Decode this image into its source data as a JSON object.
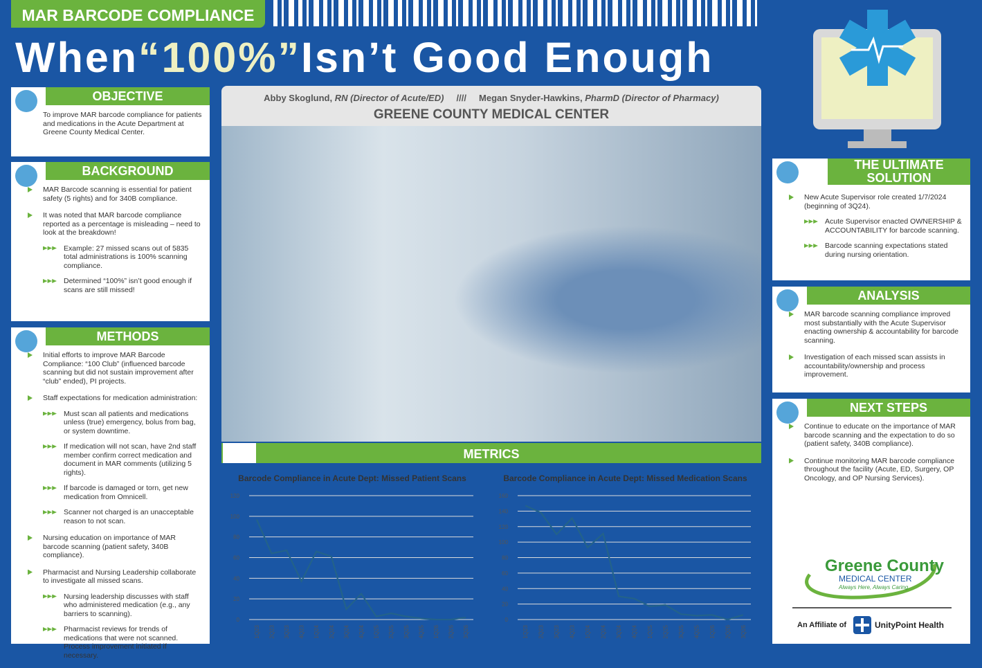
{
  "header": {
    "tag": "MAR BARCODE COMPLIANCE",
    "title_parts": [
      "When",
      "“100%”",
      "Isn’t Good Enough"
    ]
  },
  "center": {
    "authors": {
      "name1": "Abby Skoglund,",
      "role1": "RN (Director of Acute/ED)",
      "separator": "////",
      "name2": "Megan Snyder-Hawkins,",
      "role2": "PharmD (Director of Pharmacy)"
    },
    "organization": "GREENE COUNTY MEDICAL CENTER",
    "metrics_heading": "METRICS"
  },
  "sections": [
    {
      "heading": "OBJECTIVE",
      "text": "To improve MAR barcode compliance for patients and medications in the Acute Department at Greene County Medical Center."
    },
    {
      "heading": "BACKGROUND",
      "items": [
        {
          "text": "MAR Barcode scanning is essential for patient safety (5 rights) and for 340B compliance."
        },
        {
          "text": "It was noted that MAR barcode compliance reported as a percentage is misleading – need to look at the breakdown!",
          "sub": [
            "Example: 27 missed scans out of 5835 total administrations is 100% scanning compliance.",
            "Determined “100%” isn’t good enough if scans are still missed!"
          ]
        }
      ]
    },
    {
      "heading": "METHODS",
      "items": [
        {
          "text": "Initial efforts to improve MAR Barcode Compliance: “100 Club” (influenced barcode scanning but did not sustain improvement after “club” ended), PI projects."
        },
        {
          "text": "Staff expectations for medication administration:",
          "sub": [
            "Must scan all patients and medications unless (true) emergency, bolus from bag, or system downtime.",
            "If medication will not scan, have 2nd staff member confirm correct medication and document in MAR comments (utilizing 5 rights).",
            "If barcode is damaged or torn, get new medication from Omnicell.",
            "Scanner not charged is an unacceptable reason to not scan."
          ]
        },
        {
          "text": "Nursing education on importance of MAR barcode scanning (patient safety, 340B compliance)."
        },
        {
          "text": "Pharmacist and Nursing Leadership collaborate to investigate all missed scans.",
          "sub": [
            "Nursing leadership discusses with staff who administered medication (e.g., any barriers to scanning).",
            "Pharmacist reviews for trends of medications that were not scanned. Process improvement initiated if necessary."
          ]
        }
      ]
    },
    {
      "heading": "THE ULTIMATE SOLUTION",
      "items": [
        {
          "text": "New Acute Supervisor role created 1/7/2024 (beginning of 3Q24).",
          "sub": [
            "Acute Supervisor enacted OWNERSHIP & ACCOUNTABILITY for barcode scanning.",
            "Barcode scanning expectations stated during nursing orientation."
          ]
        }
      ]
    },
    {
      "heading": "ANALYSIS",
      "items": [
        {
          "text": "MAR barcode scanning compliance improved most substantially with the Acute Supervisor enacting ownership & accountability for barcode scanning."
        },
        {
          "text": "Investigation of each missed scan assists in accountability/ownership and process improvement."
        }
      ]
    },
    {
      "heading": "NEXT STEPS",
      "items": [
        {
          "text": "Continue to educate on the importance of MAR barcode scanning and the expectation to do so (patient safety, 340B compliance)."
        },
        {
          "text": "Continue monitoring MAR barcode compliance throughout the facility (Acute, ED, Surgery, OP Oncology, and OP Nursing Services)."
        }
      ]
    }
  ],
  "logo": {
    "name": "Greene County",
    "subtitle": "MEDICAL CENTER",
    "tagline": "Always Here, Always Caring.",
    "affiliate": "An Affiliate of",
    "partner": "UnityPoint Health"
  },
  "chart_data": [
    {
      "type": "line",
      "title": "Barcode Compliance in Acute Dept: Missed Patient Scans",
      "categories": [
        "1Q23",
        "2Q23",
        "3Q23",
        "4Q23",
        "1Q24",
        "2Q24",
        "3Q24",
        "4Q24",
        "1Q25",
        "2Q25",
        "3Q25",
        "4Q25",
        "1Q26",
        "2Q26",
        "3Q26"
      ],
      "values": [
        97,
        64,
        67,
        37,
        66,
        61,
        10,
        25,
        3,
        6,
        3,
        1,
        0,
        0,
        2
      ],
      "color": "#23628a",
      "ylim": [
        0,
        120
      ],
      "yticks": [
        0,
        20,
        40,
        60,
        80,
        100,
        120
      ],
      "grid": true
    },
    {
      "type": "line",
      "title": "Barcode Compliance in Acute Dept: Missed Medication Scans",
      "categories": [
        "1Q23",
        "2Q23",
        "3Q23",
        "4Q23",
        "1Q24",
        "2Q24",
        "3Q24",
        "4Q24",
        "1Q25",
        "2Q25",
        "3Q25",
        "4Q25",
        "1Q26",
        "2Q26",
        "3Q26"
      ],
      "values": [
        147,
        138,
        110,
        131,
        93,
        111,
        30,
        27,
        17,
        19,
        7,
        5,
        6,
        0,
        6
      ],
      "color": "#23628a",
      "ylim": [
        0,
        160
      ],
      "yticks": [
        0,
        20,
        40,
        60,
        80,
        100,
        120,
        140,
        160
      ],
      "grid": true
    }
  ]
}
